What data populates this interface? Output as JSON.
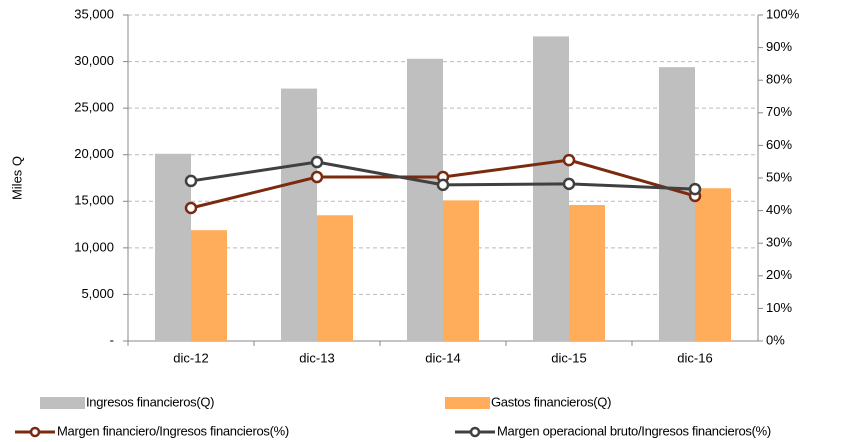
{
  "chart_data": {
    "type": "bar",
    "y_label": "Miles Q",
    "categories": [
      "dic-12",
      "dic-13",
      "dic-14",
      "dic-15",
      "dic-16"
    ],
    "series": [
      {
        "name": "Ingresos financieros(Q)",
        "type": "bar",
        "color": "#bfbfbf",
        "values": [
          20100,
          27100,
          30300,
          32700,
          29400
        ]
      },
      {
        "name": "Gastos financieros(Q)",
        "type": "bar",
        "color": "#ffad5b",
        "values": [
          11900,
          13500,
          15100,
          14600,
          16400
        ]
      },
      {
        "name": "Margen financiero/Ingresos financieros(%)",
        "type": "line",
        "axis": "y2",
        "color": "#7b2a0d",
        "values": [
          40.8,
          50.3,
          50.3,
          55.5,
          44.5
        ]
      },
      {
        "name": "Margen operacional bruto/Ingresos financieros(%)",
        "type": "line",
        "axis": "y2",
        "color": "#404040",
        "values": [
          49.1,
          54.9,
          47.9,
          48.2,
          46.6
        ]
      }
    ],
    "ylim": [
      0,
      35000
    ],
    "yticks": [
      {
        "value": 0,
        "label": "-"
      },
      {
        "value": 5000,
        "label": "5,000"
      },
      {
        "value": 10000,
        "label": "10,000"
      },
      {
        "value": 15000,
        "label": "15,000"
      },
      {
        "value": 20000,
        "label": "20,000"
      },
      {
        "value": 25000,
        "label": "25,000"
      },
      {
        "value": 30000,
        "label": "30,000"
      },
      {
        "value": 35000,
        "label": "35,000"
      }
    ],
    "y2lim": [
      0,
      100
    ],
    "y2ticks": [
      {
        "value": 0,
        "label": "0%"
      },
      {
        "value": 10,
        "label": "10%"
      },
      {
        "value": 20,
        "label": "20%"
      },
      {
        "value": 30,
        "label": "30%"
      },
      {
        "value": 40,
        "label": "40%"
      },
      {
        "value": 50,
        "label": "50%"
      },
      {
        "value": 60,
        "label": "60%"
      },
      {
        "value": 70,
        "label": "70%"
      },
      {
        "value": 80,
        "label": "80%"
      },
      {
        "value": 90,
        "label": "90%"
      },
      {
        "value": 100,
        "label": "100%"
      }
    ],
    "grid": true,
    "legend": "bottom"
  }
}
